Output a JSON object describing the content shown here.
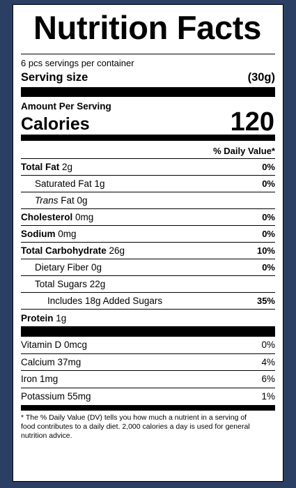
{
  "title": "Nutrition Facts",
  "servings_per_container": "6 pcs servings per container",
  "serving_size": {
    "label": "Serving size",
    "value": "(30g)"
  },
  "amount_per_serving": "Amount Per Serving",
  "calories": {
    "label": "Calories",
    "value": "120"
  },
  "daily_value_header": "% Daily Value*",
  "nutrients": {
    "total_fat": {
      "label": "Total Fat",
      "amount": " 2g",
      "dv": "0%"
    },
    "saturated_fat": {
      "label": "Saturated Fat 1g",
      "dv": "0%"
    },
    "trans_fat": {
      "label_italic": "Trans",
      "label": " Fat 0g"
    },
    "cholesterol": {
      "label": "Cholesterol",
      "amount": " 0mg",
      "dv": "0%"
    },
    "sodium": {
      "label": "Sodium",
      "amount": " 0mg",
      "dv": "0%"
    },
    "total_carbohydrate": {
      "label": "Total Carbohydrate",
      "amount": " 26g",
      "dv": "10%"
    },
    "dietary_fiber": {
      "label": "Dietary Fiber 0g",
      "dv": "0%"
    },
    "total_sugars": {
      "label": "Total Sugars 22g"
    },
    "added_sugars": {
      "label": "Includes 18g Added Sugars",
      "dv": "35%"
    },
    "protein": {
      "label": "Protein",
      "amount": " 1g"
    }
  },
  "vitamins": {
    "vitamin_d": {
      "label": "Vitamin D 0mcg",
      "dv": "0%"
    },
    "calcium": {
      "label": "Calcium 37mg",
      "dv": "4%"
    },
    "iron": {
      "label": "Iron 1mg",
      "dv": "6%"
    },
    "potassium": {
      "label": "Potassium 55mg",
      "dv": "1%"
    }
  },
  "footnote": "* The % Daily Value (DV) tells you how much a nutrient in a serving of food contributes to a daily diet. 2,000 calories a day is used for general nutrition advice."
}
